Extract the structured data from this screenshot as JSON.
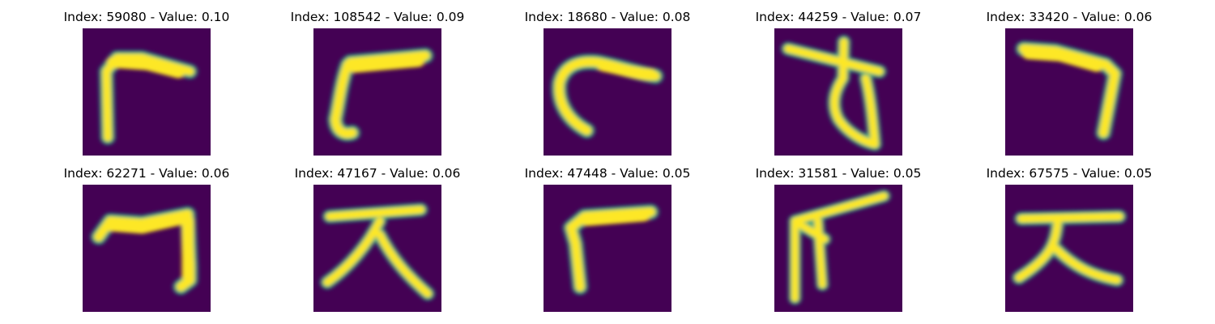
{
  "figure": {
    "colormap": "viridis",
    "background_color": "#440154",
    "stroke_color": "#fde725",
    "edge_color": "#22a884"
  },
  "panels": [
    {
      "title": "Index: 59080 - Value: 0.10",
      "glyph": "corner-bracket-top-left-stroke"
    },
    {
      "title": "Index: 108542 - Value: 0.09",
      "glyph": "corner-bracket-top-left-curved-stroke"
    },
    {
      "title": "Index: 18680 - Value: 0.08",
      "glyph": "hook-curve-stroke"
    },
    {
      "title": "Index: 44259 - Value: 0.07",
      "glyph": "cross-with-loop-character"
    },
    {
      "title": "Index: 33420 - Value: 0.06",
      "glyph": "corner-bracket-top-right-stroke"
    },
    {
      "title": "Index: 62271 - Value: 0.06",
      "glyph": "corner-bracket-top-right-stroke"
    },
    {
      "title": "Index: 47167 - Value: 0.06",
      "glyph": "big-character-da"
    },
    {
      "title": "Index: 47448 - Value: 0.05",
      "glyph": "corner-bracket-top-left-stroke"
    },
    {
      "title": "Index: 31581 - Value: 0.05",
      "glyph": "double-vertical-with-slant-stroke"
    },
    {
      "title": "Index: 67575 - Value: 0.05",
      "glyph": "big-character-da"
    }
  ]
}
